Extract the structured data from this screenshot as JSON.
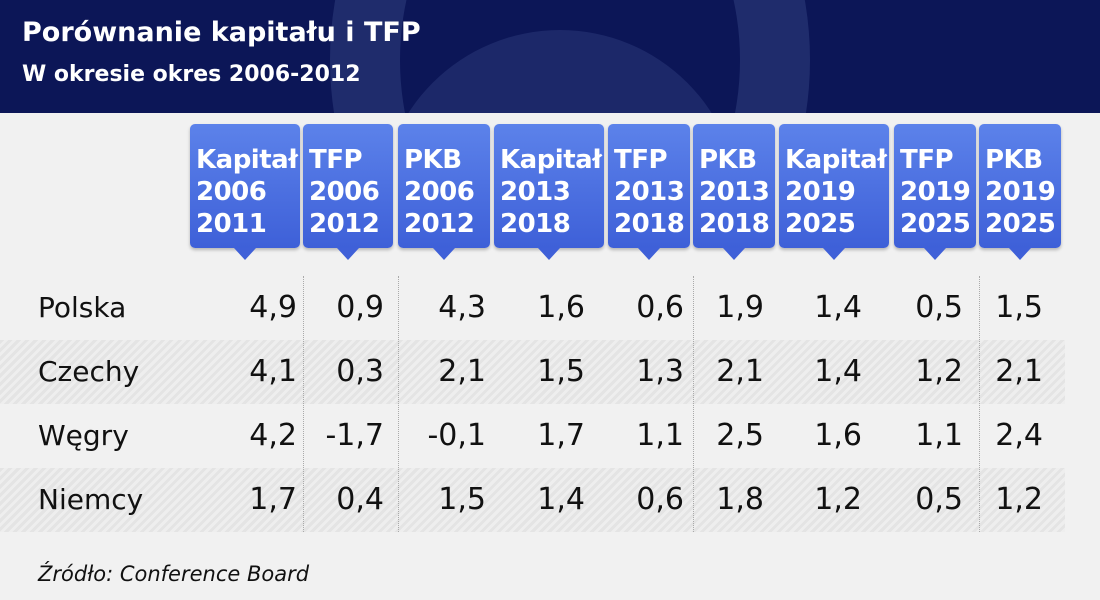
{
  "title": "Porównanie kapitału i TFP",
  "subtitle": "W okresie okres 2006-2012",
  "source": "Źródło: Conference Board",
  "colors": {
    "header_bg": "#0c1657",
    "column_header": "#4a6ee0",
    "text": "#111111"
  },
  "chart_data": {
    "type": "table",
    "columns": [
      "Kapitał\n2006\n2011",
      "TFP 2006\n2012",
      "PKB 2006\n2012",
      "Kapitał\n2013\n2018",
      "TFP\n2013\n2018",
      "PKB\n2013\n2018",
      "Kapitał\n2019\n2025",
      "TFP 2019\n2025",
      "PKB 2019\n2025"
    ],
    "rows": [
      {
        "label": "Polska",
        "values": [
          "4,9",
          "0,9",
          "4,3",
          "1,6",
          "0,6",
          "1,9",
          "1,4",
          "0,5",
          "1,5"
        ]
      },
      {
        "label": "Czechy",
        "values": [
          "4,1",
          "0,3",
          "2,1",
          "1,5",
          "1,3",
          "2,1",
          "1,4",
          "1,2",
          "2,1"
        ]
      },
      {
        "label": "Węgry",
        "values": [
          "4,2",
          "-1,7",
          "-0,1",
          "1,7",
          "1,1",
          "2,5",
          "1,6",
          "1,1",
          "2,4"
        ]
      },
      {
        "label": "Niemcy",
        "values": [
          "1,7",
          "0,4",
          "1,5",
          "1,4",
          "0,6",
          "1,8",
          "1,2",
          "0,5",
          "1,2"
        ]
      }
    ]
  }
}
